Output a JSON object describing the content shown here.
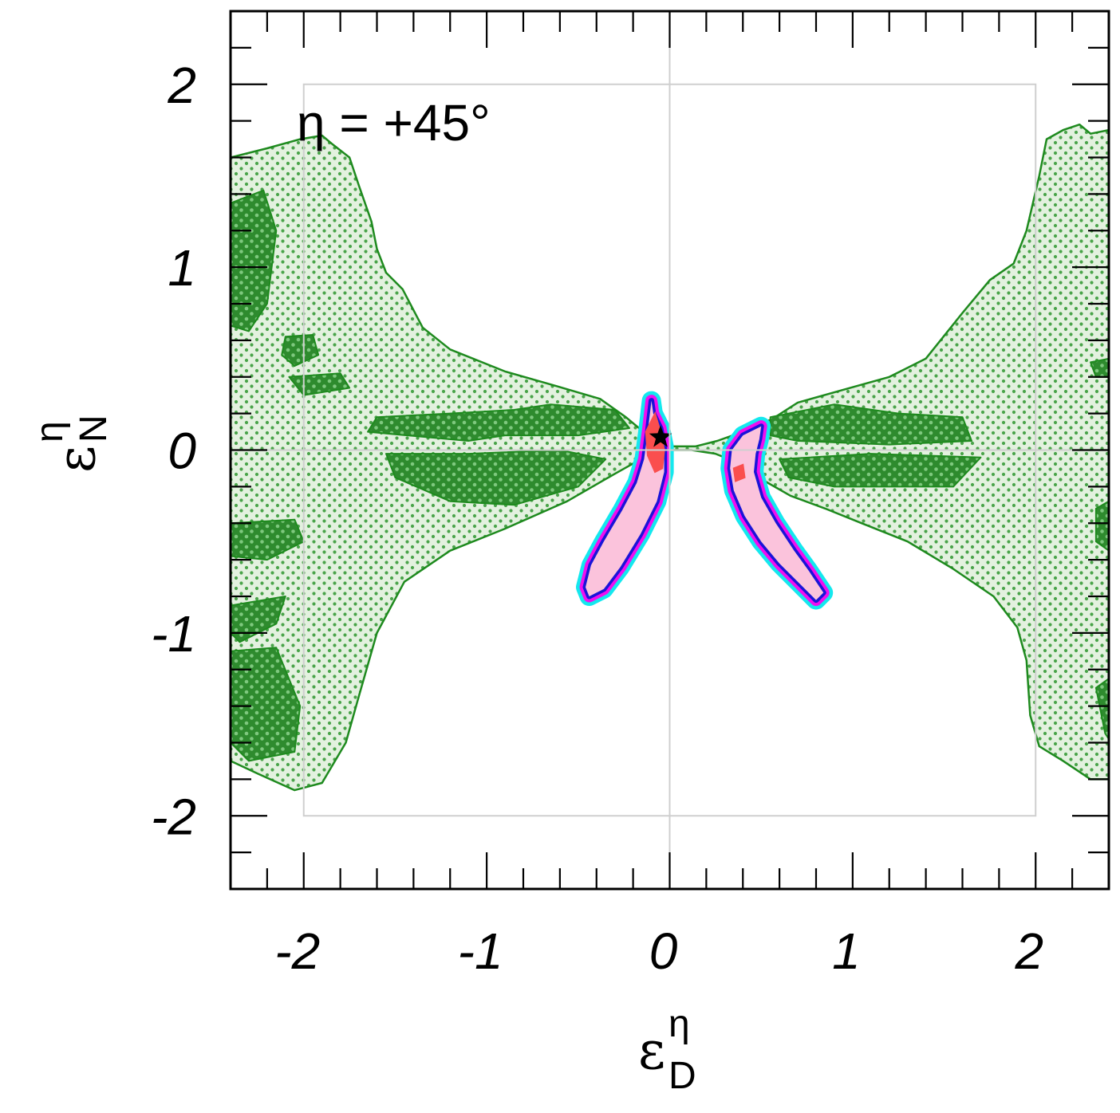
{
  "chart_data": {
    "type": "contour",
    "annotation": "η = +45°",
    "xlabel": {
      "symbol": "ε",
      "sup": "η",
      "sub": "D"
    },
    "ylabel": {
      "symbol": "ε",
      "sup": "η",
      "sub": "N"
    },
    "xlim": [
      -2.4,
      2.4
    ],
    "ylim": [
      -2.4,
      2.4
    ],
    "xticks": [
      -2,
      -1,
      0,
      1,
      2
    ],
    "yticks": [
      -2,
      -1,
      0,
      1,
      2
    ],
    "xtick_labels": [
      "-2",
      "-1",
      "0",
      "1",
      "2"
    ],
    "ytick_labels": [
      "-2",
      "-1",
      "0",
      "1",
      "2"
    ],
    "reference_box": {
      "x": [
        -2,
        2
      ],
      "y": [
        -2,
        2
      ]
    },
    "reference_lines": {
      "x": 0,
      "y": 0
    },
    "best_fit": {
      "x": -0.05,
      "y": 0.07,
      "marker": "star"
    },
    "colors": {
      "green_outline": "#1e8a1e",
      "green_light_fill": "#e3f1df",
      "green_dark_fill": "#2e8b2e",
      "cyan": "#14e8ee",
      "magenta": "#f00ef0",
      "blue": "#1a14d8",
      "pink": "#fbc3dc",
      "red": "#fa4e4e",
      "reference": "#cfcfcf"
    },
    "regions": {
      "green_outer": [
        [
          -2.02,
          1.7
        ],
        [
          -1.9,
          1.72
        ],
        [
          -1.84,
          1.67
        ],
        [
          -1.75,
          1.6
        ],
        [
          -1.7,
          1.45
        ],
        [
          -1.63,
          1.25
        ],
        [
          -1.6,
          1.1
        ],
        [
          -1.55,
          0.97
        ],
        [
          -1.46,
          0.88
        ],
        [
          -1.35,
          0.67
        ],
        [
          -1.2,
          0.55
        ],
        [
          -0.9,
          0.43
        ],
        [
          -0.62,
          0.35
        ],
        [
          -0.38,
          0.28
        ],
        [
          -0.24,
          0.18
        ],
        [
          -0.12,
          0.08
        ],
        [
          0.0,
          0.02
        ],
        [
          0.14,
          0.02
        ],
        [
          0.26,
          0.05
        ],
        [
          0.4,
          0.1
        ],
        [
          0.56,
          0.17
        ],
        [
          0.7,
          0.26
        ],
        [
          0.95,
          0.33
        ],
        [
          1.2,
          0.4
        ],
        [
          1.4,
          0.5
        ],
        [
          1.6,
          0.75
        ],
        [
          1.75,
          0.93
        ],
        [
          1.88,
          1.02
        ],
        [
          1.95,
          1.2
        ],
        [
          2.02,
          1.5
        ],
        [
          2.06,
          1.7
        ],
        [
          2.15,
          1.75
        ],
        [
          2.24,
          1.78
        ],
        [
          2.3,
          1.73
        ],
        [
          2.4,
          1.75
        ],
        [
          2.4,
          -1.8
        ],
        [
          2.3,
          -1.8
        ],
        [
          2.15,
          -1.7
        ],
        [
          2.02,
          -1.62
        ],
        [
          1.97,
          -1.45
        ],
        [
          1.95,
          -1.15
        ],
        [
          1.9,
          -0.97
        ],
        [
          1.77,
          -0.8
        ],
        [
          1.55,
          -0.65
        ],
        [
          1.3,
          -0.5
        ],
        [
          1.05,
          -0.4
        ],
        [
          0.85,
          -0.32
        ],
        [
          0.66,
          -0.25
        ],
        [
          0.52,
          -0.17
        ],
        [
          0.42,
          -0.1
        ],
        [
          0.35,
          -0.06
        ],
        [
          0.25,
          -0.02
        ],
        [
          0.12,
          0.0
        ],
        [
          0.0,
          0.0
        ],
        [
          -0.14,
          -0.04
        ],
        [
          -0.3,
          -0.13
        ],
        [
          -0.56,
          -0.28
        ],
        [
          -0.9,
          -0.43
        ],
        [
          -1.2,
          -0.55
        ],
        [
          -1.45,
          -0.72
        ],
        [
          -1.6,
          -1.0
        ],
        [
          -1.7,
          -1.35
        ],
        [
          -1.77,
          -1.6
        ],
        [
          -1.9,
          -1.82
        ],
        [
          -2.05,
          -1.86
        ],
        [
          -2.25,
          -1.77
        ],
        [
          -2.4,
          -1.7
        ],
        [
          -2.4,
          1.6
        ],
        [
          -2.2,
          1.65
        ]
      ],
      "green_inner": [
        [
          [
            -2.4,
            1.35
          ],
          [
            -2.22,
            1.42
          ],
          [
            -2.15,
            1.2
          ],
          [
            -2.2,
            0.8
          ],
          [
            -2.3,
            0.65
          ],
          [
            -2.4,
            0.68
          ]
        ],
        [
          [
            -2.1,
            0.62
          ],
          [
            -1.95,
            0.63
          ],
          [
            -1.92,
            0.52
          ],
          [
            -2.05,
            0.46
          ],
          [
            -2.12,
            0.52
          ]
        ],
        [
          [
            -2.08,
            0.4
          ],
          [
            -1.8,
            0.42
          ],
          [
            -1.75,
            0.34
          ],
          [
            -2.0,
            0.3
          ]
        ],
        [
          [
            -1.6,
            0.18
          ],
          [
            -1.2,
            0.2
          ],
          [
            -0.85,
            0.22
          ],
          [
            -0.65,
            0.25
          ],
          [
            -0.3,
            0.22
          ],
          [
            -0.22,
            0.12
          ],
          [
            -0.5,
            0.08
          ],
          [
            -0.9,
            0.08
          ],
          [
            -1.1,
            0.05
          ],
          [
            -1.65,
            0.1
          ]
        ],
        [
          [
            -1.55,
            -0.02
          ],
          [
            -1.1,
            -0.02
          ],
          [
            -0.6,
            0.0
          ],
          [
            -0.35,
            -0.05
          ],
          [
            -0.5,
            -0.2
          ],
          [
            -0.85,
            -0.3
          ],
          [
            -1.2,
            -0.28
          ],
          [
            -1.5,
            -0.15
          ]
        ],
        [
          [
            -2.4,
            -0.4
          ],
          [
            -2.05,
            -0.38
          ],
          [
            -2.0,
            -0.5
          ],
          [
            -2.2,
            -0.6
          ],
          [
            -2.4,
            -0.58
          ]
        ],
        [
          [
            -2.4,
            -0.85
          ],
          [
            -2.1,
            -0.8
          ],
          [
            -2.15,
            -0.95
          ],
          [
            -2.35,
            -1.05
          ],
          [
            -2.4,
            -1.0
          ]
        ],
        [
          [
            -2.4,
            -1.1
          ],
          [
            -2.15,
            -1.08
          ],
          [
            -2.02,
            -1.4
          ],
          [
            -2.05,
            -1.65
          ],
          [
            -2.3,
            -1.7
          ],
          [
            -2.4,
            -1.6
          ]
        ],
        [
          [
            0.55,
            0.18
          ],
          [
            0.9,
            0.25
          ],
          [
            1.25,
            0.2
          ],
          [
            1.6,
            0.18
          ],
          [
            1.65,
            0.05
          ],
          [
            1.2,
            0.03
          ],
          [
            0.7,
            0.05
          ],
          [
            0.55,
            0.08
          ]
        ],
        [
          [
            0.6,
            -0.05
          ],
          [
            1.1,
            -0.02
          ],
          [
            1.7,
            -0.04
          ],
          [
            1.55,
            -0.2
          ],
          [
            1.2,
            -0.2
          ],
          [
            0.9,
            -0.2
          ],
          [
            0.65,
            -0.15
          ]
        ],
        [
          [
            2.4,
            0.5
          ],
          [
            2.3,
            0.48
          ],
          [
            2.33,
            0.4
          ],
          [
            2.4,
            0.4
          ]
        ],
        [
          [
            2.4,
            -0.28
          ],
          [
            2.33,
            -0.32
          ],
          [
            2.33,
            -0.5
          ],
          [
            2.4,
            -0.55
          ]
        ],
        [
          [
            2.4,
            -1.25
          ],
          [
            2.33,
            -1.3
          ],
          [
            2.38,
            -1.55
          ],
          [
            2.4,
            -1.58
          ]
        ]
      ],
      "band_left": [
        [
          -0.1,
          0.27
        ],
        [
          -0.09,
          0.2
        ],
        [
          -0.05,
          0.12
        ],
        [
          -0.03,
          0.02
        ],
        [
          -0.03,
          -0.12
        ],
        [
          -0.07,
          -0.28
        ],
        [
          -0.16,
          -0.46
        ],
        [
          -0.27,
          -0.64
        ],
        [
          -0.36,
          -0.76
        ],
        [
          -0.44,
          -0.8
        ],
        [
          -0.46,
          -0.75
        ],
        [
          -0.43,
          -0.63
        ],
        [
          -0.36,
          -0.5
        ],
        [
          -0.26,
          -0.33
        ],
        [
          -0.18,
          -0.18
        ],
        [
          -0.14,
          -0.05
        ],
        [
          -0.12,
          0.1
        ]
      ],
      "band_right": [
        [
          0.5,
          0.13
        ],
        [
          0.49,
          0.06
        ],
        [
          0.47,
          -0.02
        ],
        [
          0.46,
          -0.12
        ],
        [
          0.5,
          -0.26
        ],
        [
          0.58,
          -0.4
        ],
        [
          0.68,
          -0.55
        ],
        [
          0.76,
          -0.66
        ],
        [
          0.84,
          -0.78
        ],
        [
          0.8,
          -0.82
        ],
        [
          0.7,
          -0.72
        ],
        [
          0.6,
          -0.62
        ],
        [
          0.5,
          -0.5
        ],
        [
          0.41,
          -0.36
        ],
        [
          0.35,
          -0.22
        ],
        [
          0.33,
          -0.1
        ],
        [
          0.34,
          0.0
        ],
        [
          0.4,
          0.08
        ]
      ],
      "red_left": [
        [
          -0.08,
          0.2
        ],
        [
          -0.05,
          0.1
        ],
        [
          -0.03,
          0.0
        ],
        [
          -0.04,
          -0.1
        ],
        [
          -0.08,
          -0.12
        ],
        [
          -0.12,
          -0.03
        ],
        [
          -0.13,
          0.1
        ]
      ],
      "red_right": [
        [
          0.35,
          -0.1
        ],
        [
          0.4,
          -0.08
        ],
        [
          0.41,
          -0.15
        ],
        [
          0.36,
          -0.17
        ]
      ]
    }
  }
}
